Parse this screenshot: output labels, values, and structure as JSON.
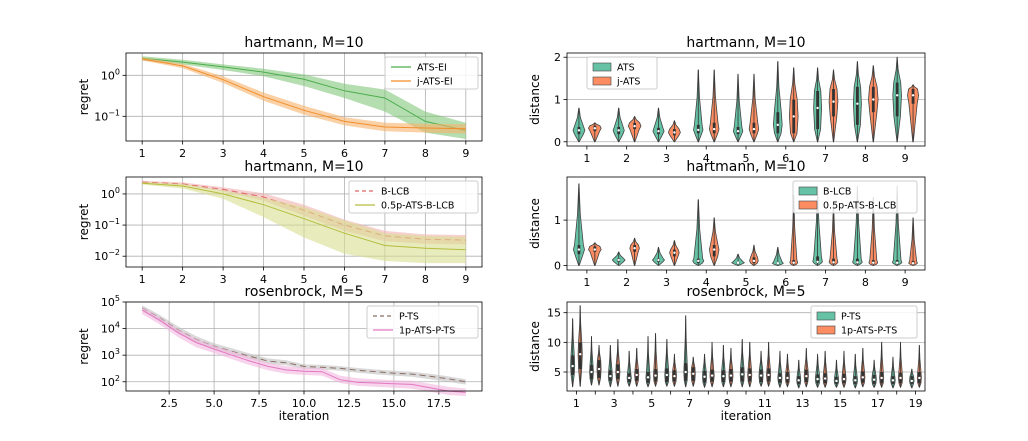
{
  "chart_data": [
    {
      "type": "line",
      "scale": "log",
      "title": "hartmann, M=10",
      "xlabel": "",
      "ylabel": "regret",
      "x": [
        1,
        2,
        3,
        4,
        5,
        6,
        7,
        8,
        9
      ],
      "xticks": [
        "1",
        "2",
        "3",
        "4",
        "5",
        "6",
        "7",
        "8",
        "9"
      ],
      "ylim": [
        0.025,
        3.5
      ],
      "yticks": [
        {
          "v": 1,
          "base": "10",
          "exp": "0"
        },
        {
          "v": 0.1,
          "base": "10",
          "exp": "−1"
        }
      ],
      "legend_position": "top-right",
      "series": [
        {
          "name": "ATS-EI",
          "color": "#4cae4c",
          "fill": "#82c77b",
          "mean": [
            2.6,
            2.1,
            1.6,
            1.2,
            0.8,
            0.42,
            0.28,
            0.075,
            0.045
          ],
          "lower": [
            2.3,
            1.85,
            1.35,
            0.95,
            0.55,
            0.28,
            0.13,
            0.04,
            0.028
          ],
          "upper": [
            2.9,
            2.4,
            1.85,
            1.45,
            1.05,
            0.62,
            0.45,
            0.13,
            0.07
          ]
        },
        {
          "name": "j-ATS-EI",
          "color": "#f28e2b",
          "fill": "#f7b36b",
          "mean": [
            2.5,
            1.7,
            0.78,
            0.3,
            0.14,
            0.075,
            0.055,
            0.052,
            0.05
          ],
          "lower": [
            2.3,
            1.5,
            0.65,
            0.24,
            0.11,
            0.06,
            0.043,
            0.04,
            0.038
          ],
          "upper": [
            2.75,
            1.9,
            0.95,
            0.38,
            0.18,
            0.095,
            0.07,
            0.066,
            0.064
          ]
        }
      ]
    },
    {
      "type": "line",
      "scale": "log",
      "title": "hartmann, M=10",
      "xlabel": "",
      "ylabel": "regret",
      "x": [
        1,
        2,
        3,
        4,
        5,
        6,
        7,
        8,
        9
      ],
      "xticks": [
        "1",
        "2",
        "3",
        "4",
        "5",
        "6",
        "7",
        "8",
        "9"
      ],
      "ylim": [
        0.0045,
        3.5
      ],
      "yticks": [
        {
          "v": 1,
          "base": "10",
          "exp": "0"
        },
        {
          "v": 0.1,
          "base": "10",
          "exp": "−1"
        },
        {
          "v": 0.01,
          "base": "10",
          "exp": "−2"
        }
      ],
      "legend_position": "top-right",
      "series": [
        {
          "name": "B-LCB",
          "color": "#e06666",
          "fill": "#f2b3b3",
          "dash": "6,4",
          "mean": [
            2.4,
            2.1,
            1.4,
            0.8,
            0.3,
            0.1,
            0.045,
            0.035,
            0.033
          ],
          "lower": [
            2.2,
            1.9,
            1.2,
            0.6,
            0.2,
            0.065,
            0.03,
            0.025,
            0.024
          ],
          "upper": [
            2.65,
            2.35,
            1.65,
            1.05,
            0.45,
            0.15,
            0.065,
            0.05,
            0.048
          ]
        },
        {
          "name": "0.5p-ATS-B-LCB",
          "color": "#b5bd3c",
          "fill": "#d8dd8f",
          "mean": [
            2.2,
            1.8,
            1.0,
            0.45,
            0.16,
            0.055,
            0.022,
            0.018,
            0.016
          ],
          "lower": [
            2.0,
            1.5,
            0.7,
            0.18,
            0.04,
            0.012,
            0.007,
            0.006,
            0.006
          ],
          "upper": [
            2.4,
            2.1,
            1.3,
            0.75,
            0.38,
            0.14,
            0.055,
            0.045,
            0.042
          ]
        }
      ]
    },
    {
      "type": "line",
      "scale": "log",
      "title": "rosenbrock, M=5",
      "xlabel": "iteration",
      "ylabel": "regret",
      "x": [
        1,
        2,
        3,
        4,
        5,
        6,
        7,
        8,
        9,
        10,
        11,
        12,
        13,
        14,
        15,
        16,
        17,
        18,
        19
      ],
      "xlim": [
        0.1,
        19.9
      ],
      "xticks_values": [
        2.5,
        5.0,
        7.5,
        10.0,
        12.5,
        15.0,
        17.5
      ],
      "xticks": [
        "2.5",
        "5.0",
        "7.5",
        "10.0",
        "12.5",
        "15.0",
        "17.5"
      ],
      "ylim": [
        45,
        100000
      ],
      "yticks": [
        {
          "v": 100000,
          "base": "10",
          "exp": "5"
        },
        {
          "v": 10000,
          "base": "10",
          "exp": "4"
        },
        {
          "v": 1000,
          "base": "10",
          "exp": "3"
        },
        {
          "v": 100,
          "base": "10",
          "exp": "2"
        }
      ],
      "legend_position": "top-right",
      "series": [
        {
          "name": "P-TS",
          "color": "#8c6d62",
          "fill": "#bfbfbf",
          "dash": "6,4",
          "mean": [
            60000,
            25000,
            9000,
            4000,
            2200,
            1400,
            900,
            600,
            520,
            380,
            350,
            320,
            270,
            240,
            210,
            195,
            160,
            130,
            100
          ],
          "lower": [
            45000,
            18000,
            6500,
            3000,
            1700,
            1100,
            700,
            470,
            420,
            310,
            290,
            260,
            220,
            190,
            170,
            155,
            125,
            100,
            78
          ],
          "upper": [
            75000,
            32000,
            12000,
            5200,
            2800,
            1800,
            1150,
            760,
            650,
            460,
            430,
            390,
            330,
            290,
            260,
            240,
            200,
            160,
            125
          ]
        },
        {
          "name": "1p-ATS-P-TS",
          "color": "#e377c2",
          "fill": "#f2b8e0",
          "mean": [
            50000,
            20000,
            7000,
            3000,
            1700,
            1000,
            600,
            380,
            280,
            250,
            240,
            120,
            95,
            90,
            85,
            80,
            60,
            45,
            40
          ],
          "lower": [
            35000,
            14000,
            4800,
            2000,
            1200,
            700,
            420,
            270,
            200,
            180,
            170,
            90,
            70,
            65,
            60,
            55,
            42,
            32,
            29
          ],
          "upper": [
            65000,
            26000,
            9500,
            4200,
            2300,
            1400,
            850,
            520,
            390,
            340,
            330,
            170,
            135,
            125,
            115,
            110,
            85,
            65,
            56
          ]
        }
      ]
    },
    {
      "type": "violin",
      "title": "hartmann, M=10",
      "xlabel": "",
      "ylabel": "distance",
      "categories": [
        "1",
        "2",
        "3",
        "4",
        "5",
        "6",
        "7",
        "8",
        "9"
      ],
      "ylim": [
        -0.1,
        2.1
      ],
      "yticks": [
        0,
        1,
        2
      ],
      "legend_position": "top-left",
      "series": [
        {
          "name": "ATS",
          "color": "#66c2a5",
          "max": [
            0.8,
            0.8,
            0.8,
            1.7,
            1.6,
            1.9,
            1.75,
            1.9,
            2.0
          ],
          "q1": [
            0.18,
            0.18,
            0.18,
            0.2,
            0.18,
            0.2,
            0.3,
            0.4,
            0.6
          ],
          "median": [
            0.27,
            0.27,
            0.25,
            0.28,
            0.25,
            0.4,
            0.8,
            0.9,
            1.1
          ],
          "q3": [
            0.35,
            0.35,
            0.33,
            0.4,
            0.35,
            0.7,
            1.2,
            1.3,
            1.4
          ],
          "width": [
            0.75,
            0.7,
            0.7,
            0.6,
            0.6,
            0.55,
            0.5,
            0.5,
            0.55
          ]
        },
        {
          "name": "j-ATS",
          "color": "#fc8d62",
          "max": [
            0.45,
            0.6,
            0.5,
            1.7,
            1.6,
            1.75,
            1.7,
            1.8,
            1.35
          ],
          "q1": [
            0.25,
            0.3,
            0.15,
            0.2,
            0.2,
            0.2,
            0.6,
            0.7,
            0.9
          ],
          "median": [
            0.32,
            0.37,
            0.22,
            0.3,
            0.3,
            0.6,
            0.95,
            1.0,
            1.1
          ],
          "q3": [
            0.38,
            0.45,
            0.3,
            0.45,
            0.45,
            1.0,
            1.25,
            1.3,
            1.25
          ],
          "width": [
            0.8,
            0.8,
            0.75,
            0.6,
            0.6,
            0.55,
            0.55,
            0.6,
            0.7
          ]
        }
      ]
    },
    {
      "type": "violin",
      "title": "hartmann, M=10",
      "xlabel": "",
      "ylabel": "distance",
      "categories": [
        "1",
        "2",
        "3",
        "4",
        "5",
        "6",
        "7",
        "8",
        "9"
      ],
      "ylim": [
        -0.1,
        1.95
      ],
      "yticks": [
        0,
        1
      ],
      "legend_position": "top-right",
      "series": [
        {
          "name": "B-LCB",
          "color": "#66c2a5",
          "max": [
            1.8,
            0.3,
            0.4,
            1.45,
            0.25,
            0.4,
            1.75,
            1.75,
            1.75
          ],
          "q1": [
            0.25,
            0.08,
            0.08,
            0.05,
            0.04,
            0.03,
            0.05,
            0.04,
            0.04
          ],
          "median": [
            0.35,
            0.12,
            0.12,
            0.1,
            0.06,
            0.05,
            0.08,
            0.07,
            0.06
          ],
          "q3": [
            0.45,
            0.15,
            0.15,
            0.15,
            0.08,
            0.07,
            0.2,
            0.15,
            0.12
          ],
          "width": [
            0.7,
            0.8,
            0.75,
            0.7,
            0.8,
            0.7,
            0.6,
            0.6,
            0.6
          ]
        },
        {
          "name": "0.5p-ATS-B-LCB",
          "color": "#fc8d62",
          "max": [
            0.5,
            0.6,
            0.55,
            1.05,
            0.45,
            1.55,
            1.35,
            1.5,
            1.05
          ],
          "q1": [
            0.3,
            0.3,
            0.2,
            0.2,
            0.05,
            0.03,
            0.04,
            0.03,
            0.03
          ],
          "median": [
            0.35,
            0.38,
            0.28,
            0.35,
            0.1,
            0.06,
            0.07,
            0.06,
            0.05
          ],
          "q3": [
            0.42,
            0.45,
            0.35,
            0.45,
            0.18,
            0.12,
            0.15,
            0.12,
            0.1
          ],
          "width": [
            0.8,
            0.6,
            0.6,
            0.6,
            0.55,
            0.5,
            0.55,
            0.55,
            0.55
          ]
        }
      ]
    },
    {
      "type": "violin",
      "title": "rosenbrock, M=5",
      "xlabel": "iteration",
      "ylabel": "distance",
      "categories": [
        "1",
        "2",
        "3",
        "4",
        "5",
        "6",
        "7",
        "8",
        "9",
        "10",
        "11",
        "12",
        "13",
        "14",
        "15",
        "16",
        "17",
        "18",
        "19"
      ],
      "category_labels": [
        "1",
        "",
        "3",
        "",
        "5",
        "",
        "7",
        "",
        "9",
        "",
        "11",
        "",
        "13",
        "",
        "15",
        "",
        "17",
        "",
        "19"
      ],
      "ylim": [
        1.8,
        16.8
      ],
      "yticks": [
        5,
        10,
        15
      ],
      "legend_position": "top-right",
      "series": [
        {
          "name": "P-TS",
          "color": "#66c2a5",
          "min": [
            2.5,
            2.8,
            2.5,
            2.6,
            2.5,
            2.6,
            2.5,
            2.4,
            2.5,
            2.5,
            2.6,
            2.4,
            2.3,
            2.4,
            2.4,
            2.3,
            2.4,
            2.3,
            2.3
          ],
          "max": [
            14,
            11,
            9.5,
            8.5,
            11,
            10.5,
            14.5,
            8,
            9.5,
            10.5,
            8.5,
            8.5,
            7,
            8,
            7,
            8,
            7,
            7.5,
            5.5
          ],
          "q1": [
            4.5,
            3.8,
            3.5,
            3.3,
            3.2,
            3.3,
            3.5,
            3.2,
            3.3,
            3.4,
            3.3,
            3.2,
            3.0,
            3.1,
            3.0,
            3.0,
            3.0,
            3.0,
            3.0
          ],
          "median": [
            6.0,
            5.0,
            4.3,
            4.0,
            4.1,
            4.5,
            5.0,
            4.2,
            4.3,
            4.6,
            4.4,
            4.0,
            3.6,
            3.8,
            3.5,
            3.6,
            3.7,
            3.6,
            3.5
          ],
          "q3": [
            7.8,
            6.2,
            5.3,
            4.8,
            5.0,
            5.6,
            6.5,
            5.2,
            5.3,
            5.8,
            5.4,
            4.8,
            4.3,
            4.6,
            4.2,
            4.3,
            4.5,
            4.3,
            4.3
          ],
          "width": [
            0.55,
            0.5,
            0.55,
            0.55,
            0.55,
            0.55,
            0.5,
            0.55,
            0.55,
            0.55,
            0.55,
            0.55,
            0.55,
            0.6,
            0.6,
            0.6,
            0.6,
            0.6,
            0.6
          ]
        },
        {
          "name": "1p-ATS-P-TS",
          "color": "#fc8d62",
          "min": [
            2.6,
            2.8,
            2.6,
            2.6,
            2.6,
            2.6,
            2.6,
            2.5,
            2.5,
            2.5,
            2.6,
            2.5,
            2.5,
            2.4,
            2.4,
            2.5,
            2.4,
            2.4,
            2.4
          ],
          "max": [
            16.2,
            9.5,
            10.5,
            9,
            11.5,
            8,
            7.5,
            10,
            9,
            10,
            10,
            8,
            9,
            8.5,
            8.5,
            9,
            10,
            10,
            9.5
          ],
          "q1": [
            5.5,
            4.0,
            3.8,
            3.5,
            3.4,
            3.4,
            3.5,
            3.4,
            3.4,
            3.4,
            3.4,
            3.2,
            3.3,
            3.1,
            3.1,
            3.2,
            3.1,
            3.1,
            3.1
          ],
          "median": [
            8.0,
            5.5,
            5.0,
            4.5,
            4.4,
            4.3,
            4.7,
            4.4,
            4.4,
            4.5,
            4.5,
            4.0,
            4.3,
            3.9,
            3.8,
            4.1,
            4.0,
            4.0,
            4.0
          ],
          "q3": [
            10.0,
            7.0,
            6.3,
            5.5,
            5.5,
            5.3,
            5.8,
            5.4,
            5.5,
            5.6,
            5.6,
            5.0,
            5.4,
            4.8,
            4.7,
            5.1,
            5.0,
            4.9,
            5.0
          ],
          "width": [
            0.55,
            0.55,
            0.55,
            0.55,
            0.55,
            0.55,
            0.55,
            0.55,
            0.55,
            0.55,
            0.55,
            0.55,
            0.55,
            0.55,
            0.55,
            0.55,
            0.55,
            0.55,
            0.55
          ]
        }
      ]
    }
  ]
}
